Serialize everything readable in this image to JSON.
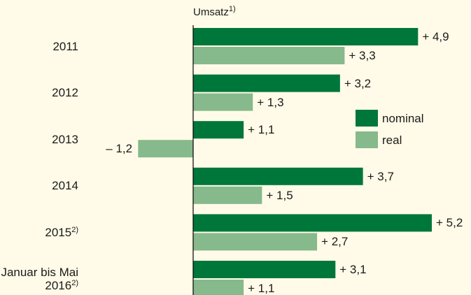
{
  "chart_data": {
    "type": "bar",
    "orientation": "horizontal",
    "title": "Umsatz",
    "title_footnote": "1)",
    "categories": [
      "2011",
      "2012",
      "2013",
      "2014",
      "2015",
      "Januar bis Mai 2016"
    ],
    "category_footnotes": [
      null,
      null,
      null,
      null,
      "2)",
      "2)"
    ],
    "series": [
      {
        "name": "nominal",
        "color": "#00773a",
        "values": [
          4.9,
          3.2,
          1.1,
          3.7,
          5.2,
          3.1
        ],
        "value_labels": [
          "+ 4,9",
          "+ 3,2",
          "+ 1,1",
          "+ 3,7",
          "+ 5,2",
          "+ 3,1"
        ]
      },
      {
        "name": "real",
        "color": "#86b98c",
        "values": [
          3.3,
          1.3,
          -1.2,
          1.5,
          2.7,
          1.1
        ],
        "value_labels": [
          "+ 3,3",
          "+ 1,3",
          "– 1,2",
          "+ 1,5",
          "+ 2,7",
          "+ 1,1"
        ]
      }
    ]
  }
}
